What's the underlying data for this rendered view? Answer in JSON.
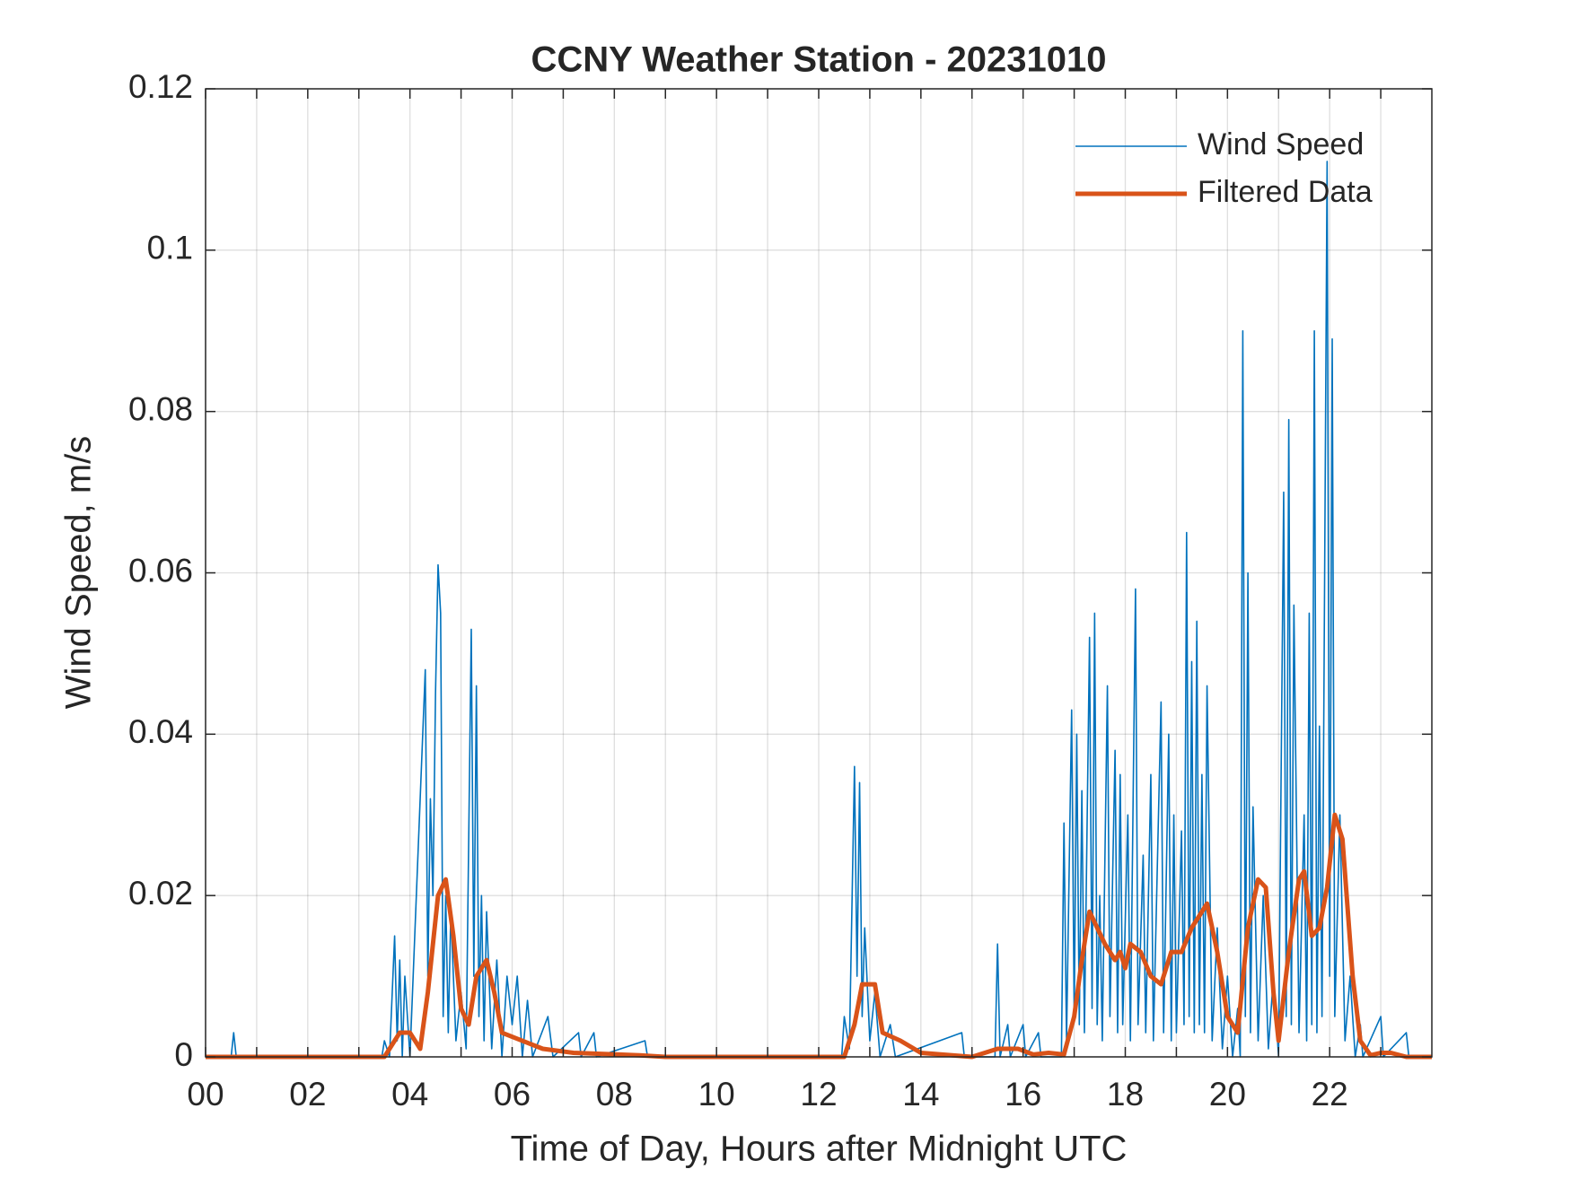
{
  "chart_data": {
    "type": "line",
    "title": "CCNY Weather Station - 20231010",
    "x_label": "Time of Day, Hours after Midnight UTC",
    "y_label": "Wind Speed, m/s",
    "xlim": [
      0,
      24
    ],
    "ylim": [
      0,
      0.12
    ],
    "xticks": [
      {
        "value": 0,
        "label": "00"
      },
      {
        "value": 2,
        "label": "02"
      },
      {
        "value": 4,
        "label": "04"
      },
      {
        "value": 6,
        "label": "06"
      },
      {
        "value": 8,
        "label": "08"
      },
      10,
      12,
      14,
      16,
      18,
      20,
      22
    ],
    "xminorticks": [
      1,
      3,
      5,
      7,
      9,
      11,
      13,
      15,
      17,
      19,
      21,
      23
    ],
    "yticks": [
      0,
      0.02,
      0.04,
      0.06,
      0.08,
      0.1,
      0.12
    ],
    "grid": true,
    "legend": "upper right",
    "series": [
      {
        "name": "Wind Speed",
        "color": "#0072BD",
        "x": [
          0,
          0.5,
          0.55,
          0.6,
          3.45,
          3.5,
          3.6,
          3.7,
          3.75,
          3.8,
          3.85,
          3.9,
          4.0,
          4.3,
          4.35,
          4.4,
          4.45,
          4.5,
          4.55,
          4.6,
          4.65,
          4.7,
          4.75,
          4.8,
          4.9,
          5.0,
          5.1,
          5.2,
          5.25,
          5.3,
          5.35,
          5.4,
          5.45,
          5.5,
          5.6,
          5.7,
          5.8,
          5.9,
          6.0,
          6.1,
          6.2,
          6.3,
          6.4,
          6.7,
          6.8,
          7.3,
          7.35,
          7.6,
          7.65,
          8.6,
          8.65,
          12.45,
          12.5,
          12.6,
          12.7,
          12.75,
          12.8,
          12.85,
          12.9,
          13.0,
          13.1,
          13.2,
          13.4,
          13.5,
          14.8,
          14.85,
          15.45,
          15.5,
          15.55,
          15.7,
          15.75,
          16.0,
          16.05,
          16.3,
          16.35,
          16.75,
          16.8,
          16.85,
          16.95,
          17.0,
          17.05,
          17.1,
          17.15,
          17.2,
          17.3,
          17.35,
          17.4,
          17.45,
          17.5,
          17.55,
          17.65,
          17.7,
          17.8,
          17.85,
          17.9,
          17.95,
          18.05,
          18.1,
          18.2,
          18.25,
          18.35,
          18.4,
          18.5,
          18.55,
          18.7,
          18.75,
          18.85,
          18.9,
          18.95,
          19.0,
          19.1,
          19.15,
          19.2,
          19.25,
          19.3,
          19.35,
          19.4,
          19.45,
          19.5,
          19.55,
          19.6,
          19.7,
          19.8,
          19.9,
          20.0,
          20.1,
          20.2,
          20.25,
          20.3,
          20.35,
          20.4,
          20.45,
          20.5,
          20.6,
          20.7,
          20.8,
          20.9,
          21.0,
          21.1,
          21.15,
          21.2,
          21.25,
          21.3,
          21.4,
          21.5,
          21.55,
          21.6,
          21.65,
          21.7,
          21.75,
          21.8,
          21.85,
          21.95,
          22.0,
          22.05,
          22.1,
          22.2,
          22.3,
          22.4,
          22.5,
          22.6,
          22.65,
          23.0,
          23.05,
          23.5,
          23.55,
          24
        ],
        "values": [
          0,
          0,
          0.003,
          0,
          0,
          0.002,
          0,
          0.015,
          0.002,
          0.012,
          0,
          0.01,
          0,
          0.048,
          0.01,
          0.032,
          0.02,
          0.045,
          0.061,
          0.055,
          0.005,
          0.02,
          0.003,
          0.018,
          0.002,
          0.008,
          0.001,
          0.053,
          0.01,
          0.046,
          0.005,
          0.02,
          0.002,
          0.018,
          0.001,
          0.012,
          0,
          0.01,
          0.004,
          0.01,
          0,
          0.007,
          0,
          0.005,
          0,
          0.003,
          0,
          0.003,
          0,
          0.002,
          0,
          0,
          0.005,
          0.001,
          0.036,
          0.01,
          0.034,
          0.005,
          0.016,
          0.002,
          0.008,
          0,
          0.004,
          0,
          0.003,
          0,
          0,
          0.014,
          0,
          0.004,
          0,
          0.004,
          0,
          0.003,
          0,
          0,
          0.029,
          0.002,
          0.043,
          0.005,
          0.04,
          0.004,
          0.033,
          0.003,
          0.052,
          0.006,
          0.055,
          0.004,
          0.02,
          0.002,
          0.046,
          0.005,
          0.038,
          0.003,
          0.035,
          0.004,
          0.03,
          0.002,
          0.058,
          0.004,
          0.025,
          0.003,
          0.035,
          0.002,
          0.044,
          0.003,
          0.04,
          0.002,
          0.03,
          0.003,
          0.028,
          0.004,
          0.065,
          0.005,
          0.049,
          0.003,
          0.054,
          0.004,
          0.035,
          0.003,
          0.046,
          0.002,
          0.016,
          0.001,
          0.01,
          0,
          0.006,
          0,
          0.09,
          0.005,
          0.06,
          0.003,
          0.031,
          0.002,
          0.02,
          0.001,
          0.01,
          0,
          0.07,
          0.005,
          0.079,
          0.004,
          0.056,
          0.003,
          0.03,
          0.002,
          0.055,
          0.004,
          0.09,
          0.003,
          0.041,
          0.005,
          0.111,
          0.01,
          0.089,
          0.005,
          0.03,
          0.002,
          0.01,
          0,
          0.004,
          0,
          0.005,
          0,
          0.003,
          0,
          0
        ]
      },
      {
        "name": "Filtered Data",
        "color": "#D95319",
        "x": [
          0,
          3.5,
          3.8,
          4.0,
          4.2,
          4.35,
          4.55,
          4.7,
          4.85,
          5.0,
          5.15,
          5.3,
          5.5,
          5.65,
          5.8,
          6.2,
          6.6,
          7.2,
          8.5,
          9.0,
          12.5,
          12.7,
          12.85,
          13.1,
          13.25,
          13.6,
          14.0,
          15.0,
          15.5,
          15.9,
          16.2,
          16.5,
          16.8,
          17.0,
          17.15,
          17.3,
          17.45,
          17.6,
          17.8,
          17.9,
          18.0,
          18.1,
          18.3,
          18.5,
          18.7,
          18.9,
          19.1,
          19.3,
          19.5,
          19.6,
          19.8,
          20.0,
          20.2,
          20.4,
          20.6,
          20.75,
          20.9,
          21.0,
          21.2,
          21.4,
          21.5,
          21.65,
          21.8,
          21.95,
          22.1,
          22.25,
          22.45,
          22.6,
          22.8,
          23.0,
          23.2,
          23.5,
          24
        ],
        "values": [
          0,
          0,
          0.003,
          0.003,
          0.001,
          0.008,
          0.02,
          0.022,
          0.015,
          0.006,
          0.004,
          0.01,
          0.012,
          0.008,
          0.003,
          0.002,
          0.001,
          0.0005,
          0.0002,
          0,
          0,
          0.004,
          0.009,
          0.009,
          0.003,
          0.002,
          0.0005,
          0,
          0.001,
          0.001,
          0.0003,
          0.0005,
          0.0003,
          0.005,
          0.012,
          0.018,
          0.016,
          0.014,
          0.012,
          0.013,
          0.011,
          0.014,
          0.013,
          0.01,
          0.009,
          0.013,
          0.013,
          0.016,
          0.018,
          0.019,
          0.013,
          0.005,
          0.003,
          0.016,
          0.022,
          0.021,
          0.008,
          0.002,
          0.013,
          0.022,
          0.023,
          0.015,
          0.016,
          0.021,
          0.03,
          0.027,
          0.01,
          0.002,
          0.0002,
          0.0005,
          0.0005,
          0,
          0
        ]
      }
    ]
  }
}
